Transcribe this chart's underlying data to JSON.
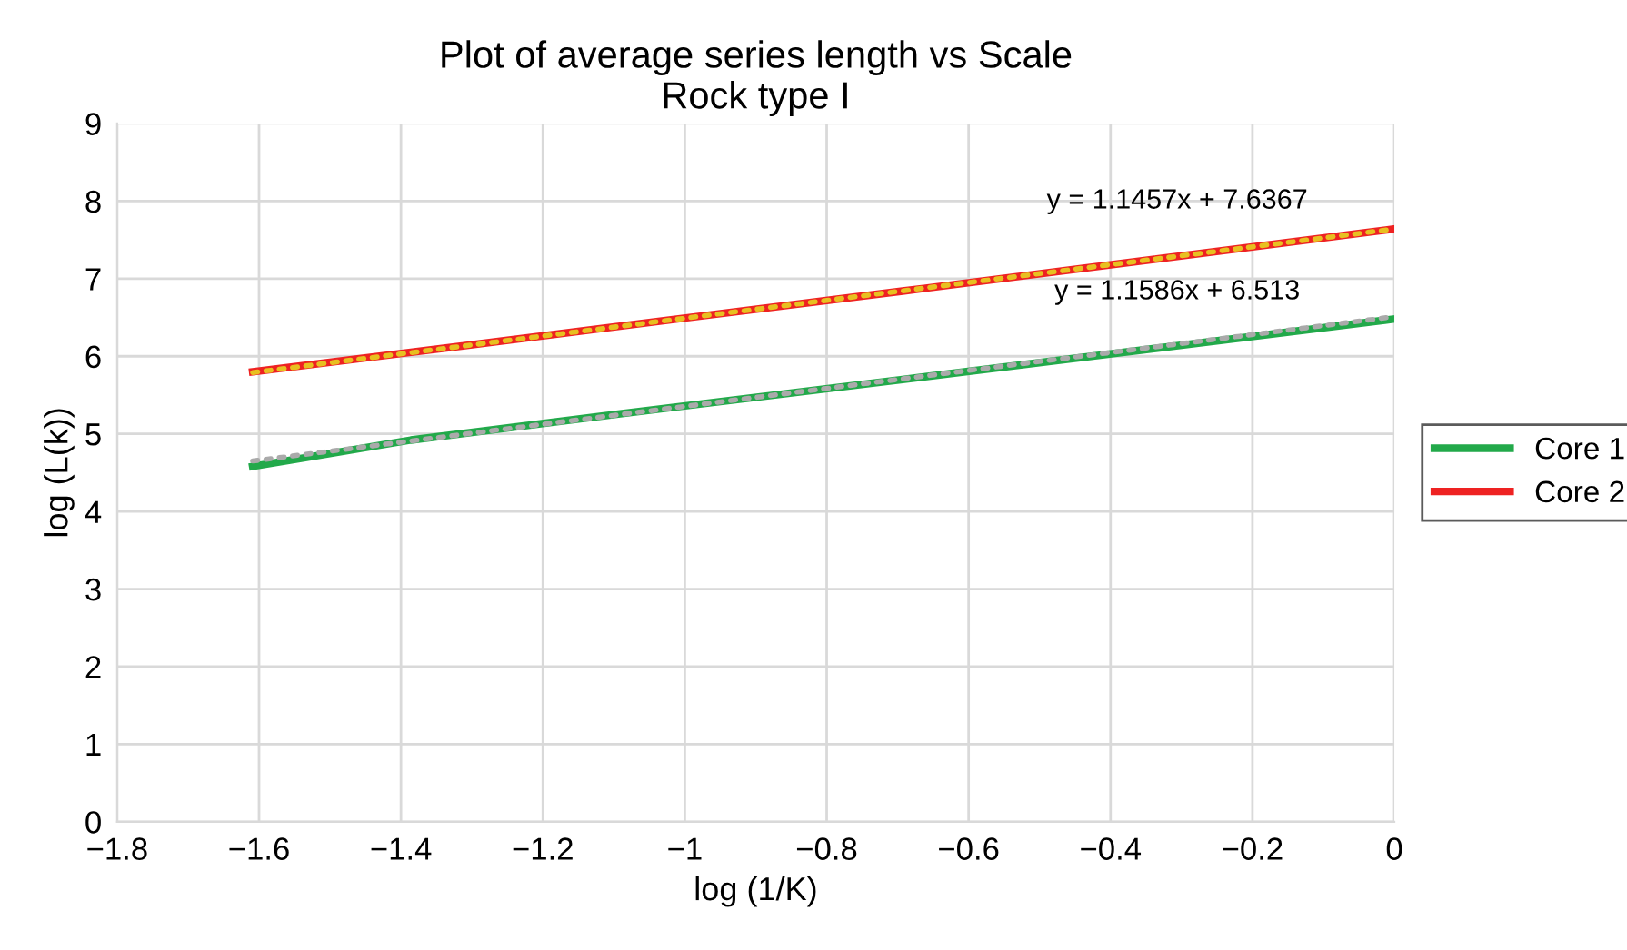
{
  "chart_data": {
    "type": "line",
    "title": "Plot of average series length vs Scale\nRock type I",
    "xlabel": "log (1/K)",
    "ylabel": "log (L(k))",
    "series": [
      {
        "name": "Core 1",
        "color": "#22a94a",
        "x": [
          -1.609,
          -1.386,
          -1.099,
          -0.693,
          0
        ],
        "values": [
          4.58,
          4.92,
          5.25,
          5.7,
          6.48
        ]
      },
      {
        "name": "Core 2",
        "color": "#ee2222",
        "x": [
          -1.609,
          -1.386,
          -1.099,
          -0.693,
          0
        ],
        "values": [
          5.8,
          6.05,
          6.38,
          6.84,
          7.64
        ]
      },
      {
        "type": "line",
        "color": "#aaaaaa",
        "line_style": "dotted",
        "x": [
          -1.609,
          0
        ],
        "values": [
          4.65,
          6.51
        ]
      },
      {
        "type": "line",
        "color": "#e8c020",
        "line_style": "dotted",
        "x": [
          -1.609,
          0
        ],
        "values": [
          5.79,
          7.64
        ]
      }
    ],
    "annotations": [
      "y = 1.1457x + 7.6367",
      "y = 1.1586x + 6.513"
    ],
    "xlim": [
      -1.8,
      0
    ],
    "ylim": [
      0,
      9
    ],
    "xticks": [
      {
        "value": -1.8,
        "label": "−1.8"
      },
      {
        "value": -1.6,
        "label": "−1.6"
      },
      {
        "value": -1.4,
        "label": "−1.4"
      },
      {
        "value": -1.2,
        "label": "−1.2"
      },
      {
        "value": -1,
        "label": "−1"
      },
      {
        "value": -0.8,
        "label": "−0.8"
      },
      {
        "value": -0.6,
        "label": "−0.6"
      },
      {
        "value": -0.4,
        "label": "−0.4"
      },
      {
        "value": -0.2,
        "label": "−0.2"
      },
      0
    ],
    "yticks": [
      0,
      1,
      2,
      3,
      4,
      5,
      6,
      7,
      8,
      9
    ],
    "grid": true,
    "legend": "right",
    "line_style": "solid",
    "marker": "none"
  }
}
